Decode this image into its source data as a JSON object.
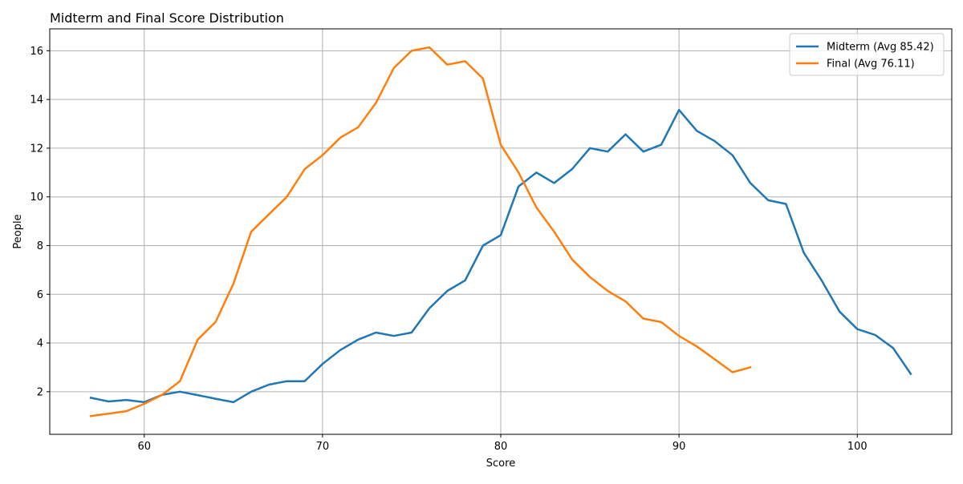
{
  "chart_data": {
    "type": "line",
    "title": "Midterm and Final Score Distribution",
    "xlabel": "Score",
    "ylabel": "People",
    "xlim": [
      54.7,
      105.3
    ],
    "ylim": [
      0.25,
      16.9
    ],
    "xticks": [
      60,
      70,
      80,
      90,
      100
    ],
    "yticks": [
      2,
      4,
      6,
      8,
      10,
      12,
      14,
      16
    ],
    "grid": true,
    "legend_position": "top-right",
    "series": [
      {
        "name": "Midterm (Avg 85.42)",
        "color": "#1f77b4",
        "x": [
          57,
          58,
          59,
          60,
          61,
          62,
          63,
          64,
          65,
          66,
          67,
          68,
          69,
          70,
          71,
          72,
          73,
          74,
          75,
          76,
          77,
          78,
          79,
          80,
          81,
          82,
          83,
          84,
          85,
          86,
          87,
          88,
          89,
          90,
          91,
          92,
          93,
          94,
          95,
          96,
          97,
          98,
          99,
          100,
          101,
          102,
          103
        ],
        "values": [
          1.75,
          1.6,
          1.66,
          1.57,
          1.87,
          2.0,
          1.86,
          1.71,
          1.57,
          2.0,
          2.29,
          2.43,
          2.43,
          3.14,
          3.71,
          4.14,
          4.43,
          4.29,
          4.43,
          5.43,
          6.14,
          6.57,
          8.0,
          8.43,
          10.43,
          11.0,
          10.57,
          11.14,
          12.0,
          11.86,
          12.57,
          11.86,
          12.14,
          13.57,
          12.71,
          12.29,
          11.71,
          10.57,
          9.86,
          9.71,
          7.71,
          6.57,
          5.29,
          4.57,
          4.33,
          3.8,
          2.73
        ]
      },
      {
        "name": "Final (Avg 76.11)",
        "color": "#ff7f0e",
        "x": [
          57,
          58,
          59,
          60,
          61,
          62,
          63,
          64,
          65,
          66,
          67,
          68,
          69,
          70,
          71,
          72,
          73,
          74,
          75,
          76,
          77,
          78,
          79,
          80,
          81,
          82,
          83,
          84,
          85,
          86,
          87,
          88,
          89,
          90,
          91,
          92,
          93,
          94
        ],
        "values": [
          1.0,
          1.1,
          1.2,
          1.5,
          1.87,
          2.43,
          4.14,
          4.86,
          6.43,
          8.57,
          9.29,
          10.0,
          11.14,
          11.71,
          12.43,
          12.86,
          13.86,
          15.29,
          16.0,
          16.14,
          15.43,
          15.57,
          14.86,
          12.14,
          11.0,
          9.57,
          8.57,
          7.43,
          6.71,
          6.14,
          5.71,
          5.0,
          4.86,
          4.29,
          3.86,
          3.33,
          2.8,
          3.0
        ]
      }
    ]
  }
}
